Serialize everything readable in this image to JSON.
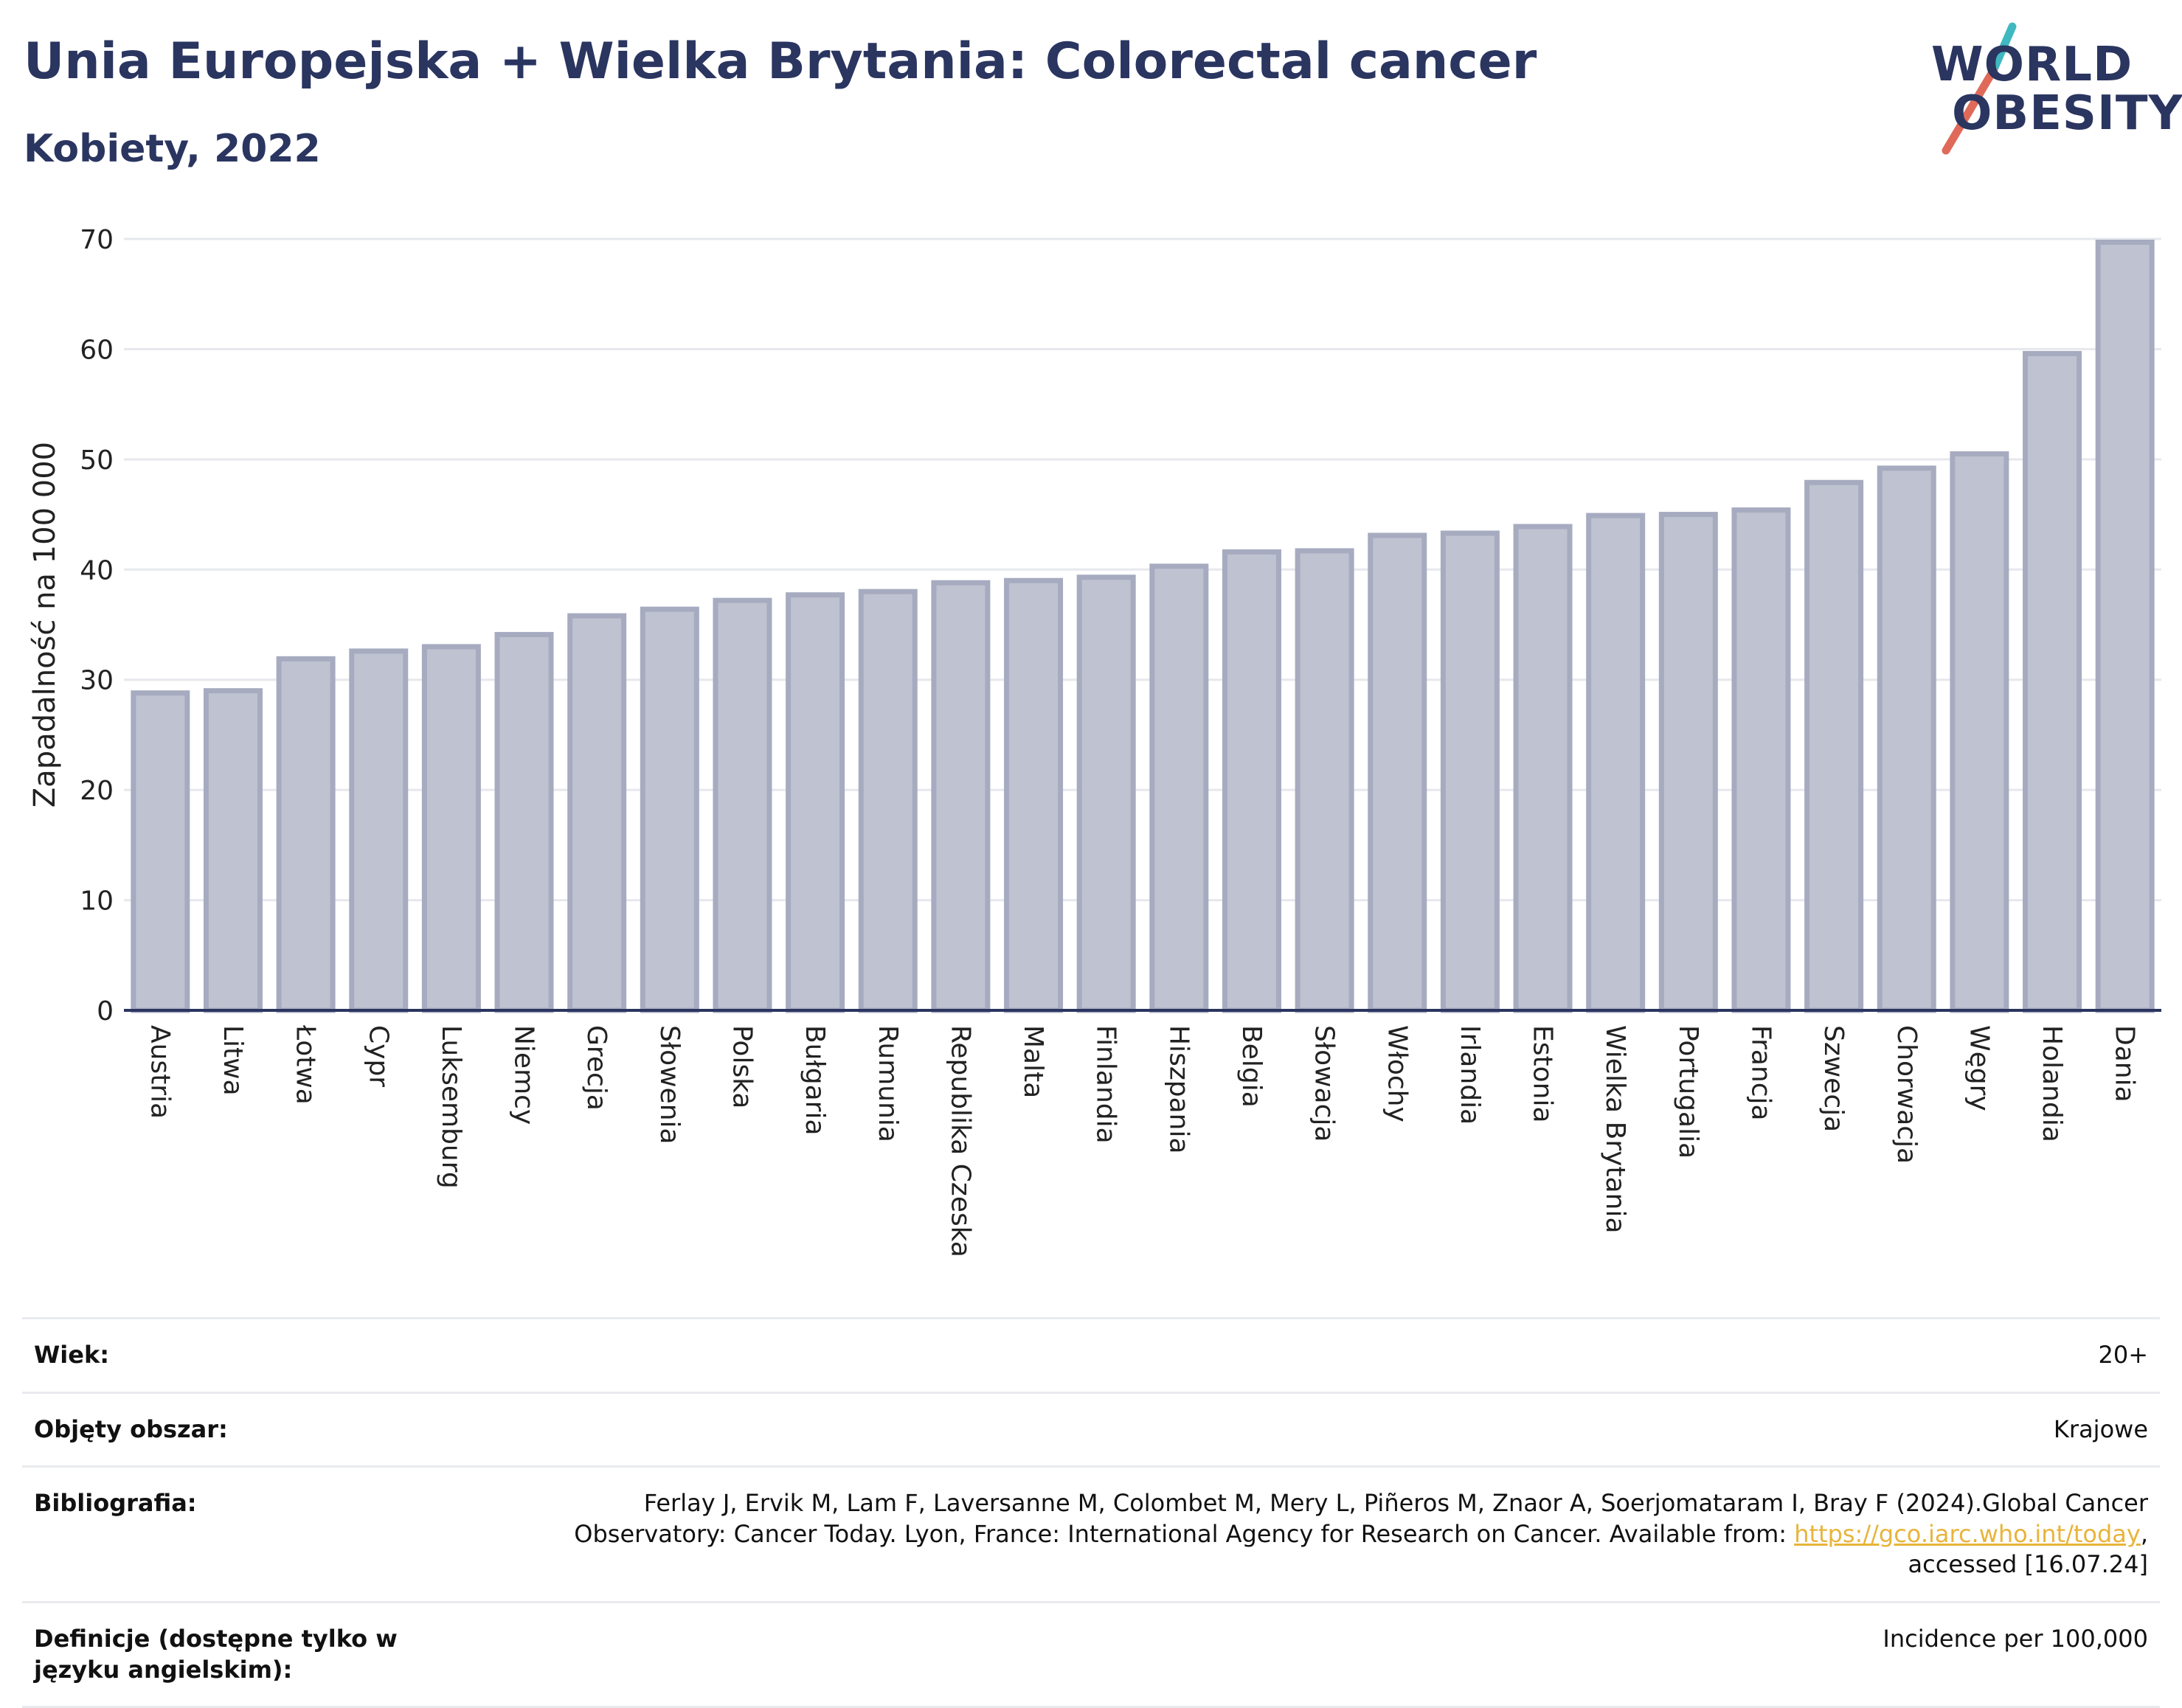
{
  "header": {
    "title": "Unia Europejska + Wielka Brytania: Colorectal cancer",
    "subtitle": "Kobiety, 2022"
  },
  "logo": {
    "line1": "WORLD",
    "line2": "OBESITY",
    "accent_teal": "#3fb8c0",
    "accent_red": "#e06a5a"
  },
  "colors": {
    "bar_fill": "#bfc2d0",
    "bar_stroke": "#a7abc0",
    "axis": "#2a3560",
    "grid": "#e6e8ee"
  },
  "chart_data": {
    "type": "bar",
    "title": "",
    "xlabel": "",
    "ylabel": "Zapadalność na 100 000",
    "ylim": [
      0,
      70
    ],
    "yticks": [
      0,
      10,
      20,
      30,
      40,
      50,
      60,
      70
    ],
    "grid": true,
    "categories": [
      "Austria",
      "Litwa",
      "Łotwa",
      "Cypr",
      "Luksemburg",
      "Niemcy",
      "Grecja",
      "Słowenia",
      "Polska",
      "Bułgaria",
      "Rumunia",
      "Republika Czeska",
      "Malta",
      "Finlandia",
      "Hiszpania",
      "Belgia",
      "Słowacja",
      "Włochy",
      "Irlandia",
      "Estonia",
      "Wielka Brytania",
      "Portugalia",
      "Francja",
      "Szwecja",
      "Chorwacja",
      "Węgry",
      "Holandia",
      "Dania"
    ],
    "values": [
      28.8,
      29.0,
      31.9,
      32.6,
      33.0,
      34.1,
      35.8,
      36.4,
      37.2,
      37.7,
      38.0,
      38.8,
      39.0,
      39.3,
      40.3,
      41.6,
      41.7,
      43.1,
      43.3,
      43.9,
      44.9,
      45.0,
      45.4,
      47.9,
      49.2,
      50.5,
      59.6,
      69.7
    ]
  },
  "meta": [
    {
      "label": "Wiek:",
      "value": "20+"
    },
    {
      "label": "Objęty obszar:",
      "value": "Krajowe"
    },
    {
      "label": "Bibliografia:",
      "value_pre": "Ferlay J, Ervik M, Lam F, Laversanne M, Colombet M, Mery L, Piñeros M, Znaor A, Soerjomataram I, Bray F (2024).Global Cancer Observatory: Cancer Today. Lyon, France: International Agency for Research on Cancer. Available from: ",
      "link": "https://gco.iarc.who.int/today",
      "value_post": ", accessed [16.07.24]"
    },
    {
      "label": "Definicje (dostępne tylko w języku angielskim):",
      "value": "Incidence per 100,000"
    }
  ]
}
